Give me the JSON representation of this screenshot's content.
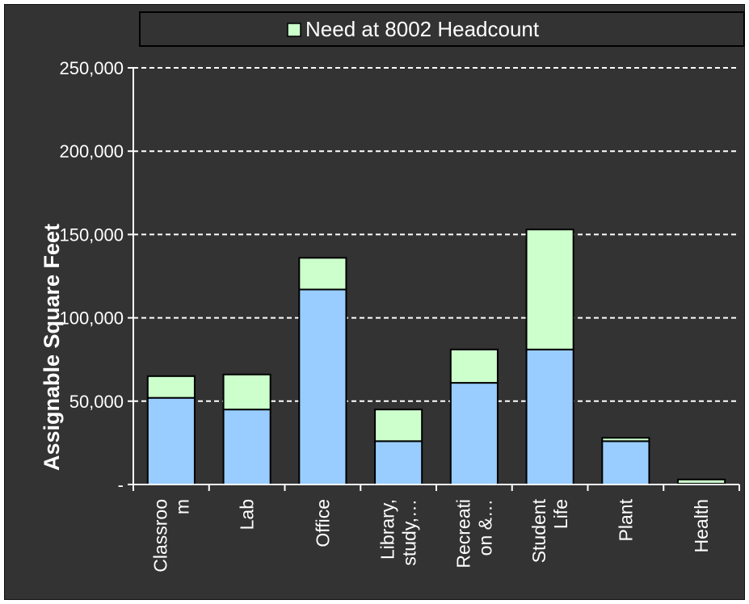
{
  "chart_data": {
    "type": "bar",
    "stacked": true,
    "title": "",
    "xlabel": "",
    "ylabel": "Assignable Square Feet",
    "ylim": [
      0,
      250000
    ],
    "yticks": [
      0,
      50000,
      100000,
      150000,
      200000,
      250000
    ],
    "ytick_labels": [
      "-",
      "50,000",
      "100,000",
      "150,000",
      "200,000",
      "250,000"
    ],
    "grid": true,
    "legend_position": "top",
    "categories": [
      "Classroom",
      "Lab",
      "Office",
      "Library, study,…",
      "Recreation &…",
      "Student Life",
      "Plant",
      "Health"
    ],
    "category_labels": [
      [
        "Classroo",
        "m"
      ],
      [
        "Lab"
      ],
      [
        "Office"
      ],
      [
        "Library,",
        "study,…"
      ],
      [
        "Recreati",
        "on &…"
      ],
      [
        "Student",
        "Life"
      ],
      [
        "Plant"
      ],
      [
        "Health"
      ]
    ],
    "series": [
      {
        "values": [
          52000,
          45000,
          117000,
          26000,
          61000,
          81000,
          26000,
          500
        ],
        "color": "#99ccff",
        "in_legend": false
      },
      {
        "name": "Need at 8002 Headcount",
        "values": [
          13000,
          21000,
          19000,
          19000,
          20000,
          72000,
          2000,
          2500
        ],
        "color": "#ccffcc",
        "in_legend": true
      }
    ]
  }
}
